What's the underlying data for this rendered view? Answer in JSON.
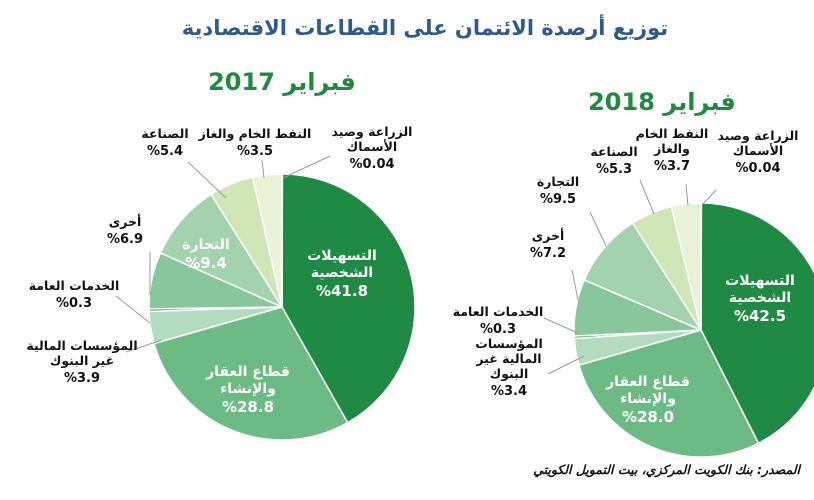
{
  "title": "توزيع أرصدة الائتمان على القطاعات الاقتصادية",
  "source": "المصدر: بنك الكويت المركزي، بيت التمويل الكويتي",
  "colors": {
    "title": "#2f5a8c",
    "year": "#1f8a3e",
    "slices": {
      "personal": "#1e8a43",
      "real_estate": "#6cba84",
      "nbfi": "#b3dcbf",
      "public_services": "#2f7a45",
      "other": "#88c79b",
      "trade": "#a3d3ae",
      "industry": "#cfe6b6",
      "oil_gas": "#e9f1d7",
      "agriculture": "#5a9e6c"
    }
  },
  "chart_data": [
    {
      "type": "pie",
      "title": "فبراير 2017",
      "slices": [
        {
          "key": "personal",
          "label": "التسهيلات الشخصية",
          "value": 41.8,
          "value_label": "%41.8"
        },
        {
          "key": "real_estate",
          "label": "قطاع العقار والإنشاء",
          "value": 28.8,
          "value_label": "%28.8"
        },
        {
          "key": "nbfi",
          "label": "المؤسسات المالية غير البنوك",
          "value": 3.9,
          "value_label": "%3.9"
        },
        {
          "key": "public_services",
          "label": "الخدمات العامة",
          "value": 0.3,
          "value_label": "%0.3"
        },
        {
          "key": "other",
          "label": "أخرى",
          "value": 6.9,
          "value_label": "%6.9"
        },
        {
          "key": "trade",
          "label": "التجارة",
          "value": 9.4,
          "value_label": "%9.4"
        },
        {
          "key": "industry",
          "label": "الصناعة",
          "value": 5.4,
          "value_label": "%5.4"
        },
        {
          "key": "oil_gas",
          "label": "النفط الخام والغاز",
          "value": 3.5,
          "value_label": "%3.5"
        },
        {
          "key": "agriculture",
          "label": "الزراعة وصيد الأسماك",
          "value": 0.04,
          "value_label": "%0.04"
        }
      ]
    },
    {
      "type": "pie",
      "title": "فبراير 2018",
      "slices": [
        {
          "key": "personal",
          "label": "التسهيلات الشخصية",
          "value": 42.5,
          "value_label": "%42.5"
        },
        {
          "key": "real_estate",
          "label": "قطاع العقار والإنشاء",
          "value": 28.0,
          "value_label": "%28.0"
        },
        {
          "key": "nbfi",
          "label": "المؤسسات المالية غير البنوك",
          "value": 3.4,
          "value_label": "%3.4"
        },
        {
          "key": "public_services",
          "label": "الخدمات العامة",
          "value": 0.3,
          "value_label": "%0.3"
        },
        {
          "key": "other",
          "label": "أخرى",
          "value": 7.2,
          "value_label": "%7.2"
        },
        {
          "key": "trade",
          "label": "التجارة",
          "value": 9.5,
          "value_label": "%9.5"
        },
        {
          "key": "industry",
          "label": "الصناعة",
          "value": 5.3,
          "value_label": "%5.3"
        },
        {
          "key": "oil_gas",
          "label": "النفط الخام والغاز",
          "value": 3.7,
          "value_label": "%3.7"
        },
        {
          "key": "agriculture",
          "label": "الزراعة وصيد الأسماك",
          "value": 0.04,
          "value_label": "%0.04"
        }
      ]
    }
  ]
}
